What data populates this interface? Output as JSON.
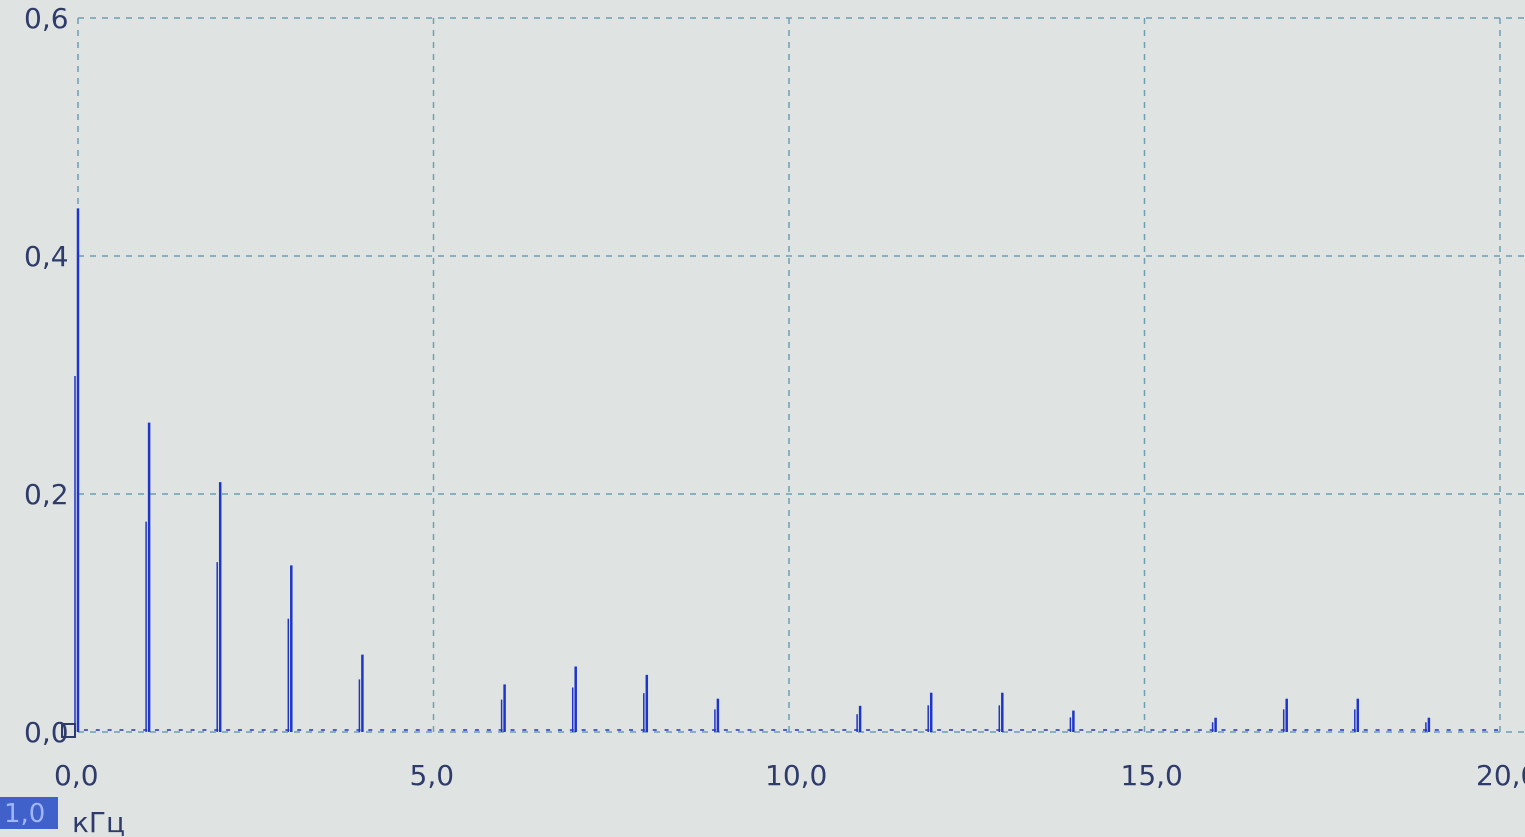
{
  "chart_data": {
    "type": "bar",
    "title": "",
    "xlabel": "кГц",
    "ylabel": "",
    "xlim": [
      0.0,
      20.0
    ],
    "ylim": [
      0.0,
      0.6
    ],
    "grid": true,
    "x_tick_labels": [
      "0,0",
      "5,0",
      "10,0",
      "15,0",
      "20,0"
    ],
    "y_tick_labels": [
      "0,0",
      "0,2",
      "0,4",
      "0,6"
    ],
    "x_ticks": [
      0,
      5,
      10,
      15,
      20
    ],
    "y_ticks": [
      0.0,
      0.2,
      0.4,
      0.6
    ],
    "series": [
      {
        "x": [
          0.0,
          1.0,
          2.0,
          3.0,
          4.0,
          6.0,
          7.0,
          8.0,
          9.0,
          11.0,
          12.0,
          13.0,
          14.0,
          16.0,
          17.0,
          18.0,
          19.0
        ],
        "values": [
          0.44,
          0.26,
          0.21,
          0.14,
          0.065,
          0.04,
          0.055,
          0.048,
          0.028,
          0.022,
          0.033,
          0.033,
          0.018,
          0.012,
          0.028,
          0.028,
          0.012
        ]
      }
    ],
    "range_badge": "1,0",
    "colors": {
      "line": "#1f35c8",
      "grid": "#6f9fb3",
      "text": "#2f3b6a",
      "badge": "#3f61c9"
    }
  }
}
